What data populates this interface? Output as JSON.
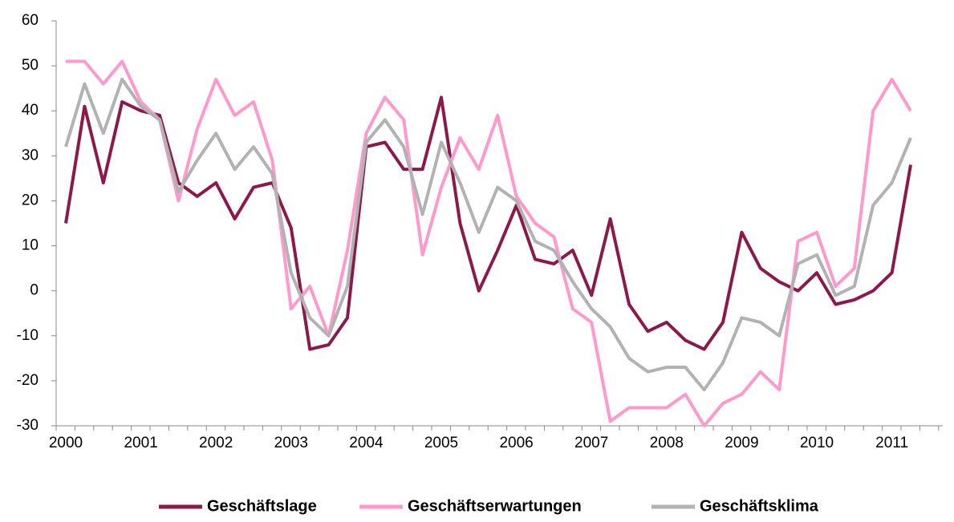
{
  "chart_data": {
    "type": "line",
    "categories": [
      "2000",
      null,
      null,
      null,
      "2001",
      null,
      null,
      null,
      "2002",
      null,
      null,
      null,
      "2003",
      null,
      null,
      null,
      "2004",
      null,
      null,
      null,
      "2005",
      null,
      null,
      null,
      "2006",
      null,
      null,
      null,
      "2007",
      null,
      null,
      null,
      "2008",
      null,
      null,
      null,
      "2009",
      null,
      null,
      null,
      "2010",
      null,
      null,
      null,
      "2011",
      null
    ],
    "series": [
      {
        "name": "Geschäftslage",
        "color": "#8b1a4a",
        "values": [
          15,
          41,
          24,
          42,
          40,
          39,
          24,
          21,
          24,
          16,
          23,
          24,
          14,
          -13,
          -12,
          -6,
          32,
          33,
          27,
          27,
          43,
          15,
          0,
          9,
          19,
          7,
          6,
          9,
          -1,
          16,
          -3,
          -9,
          -7,
          -11,
          -13,
          -7,
          13,
          5,
          2,
          0,
          4,
          -3,
          -2,
          0,
          4,
          28
        ]
      },
      {
        "name": "Geschäftserwartungen",
        "color": "#ff99cc",
        "values": [
          51,
          51,
          46,
          51,
          42,
          38,
          20,
          36,
          47,
          39,
          42,
          29,
          -4,
          1,
          -10,
          9,
          35,
          43,
          38,
          8,
          23,
          34,
          27,
          39,
          21,
          15,
          12,
          -4,
          -7,
          -29,
          -26,
          -26,
          -26,
          -23,
          -30,
          -25,
          -23,
          -18,
          -22,
          11,
          13,
          1,
          5,
          40,
          47,
          40
        ]
      },
      {
        "name": "Geschäftsklima",
        "color": "#b2b2b2",
        "values": [
          32,
          46,
          35,
          47,
          41,
          38,
          22,
          29,
          35,
          27,
          32,
          26,
          4,
          -6,
          -10,
          1,
          33,
          38,
          32,
          17,
          33,
          24,
          13,
          23,
          20,
          11,
          9,
          2,
          -4,
          -8,
          -15,
          -18,
          -17,
          -17,
          -22,
          -16,
          -6,
          -7,
          -10,
          6,
          8,
          -1,
          1,
          19,
          24,
          34
        ]
      }
    ],
    "ylim": [
      -30,
      60
    ],
    "yticks": [
      -30,
      -20,
      -10,
      0,
      10,
      20,
      30,
      40,
      50,
      60
    ],
    "legend": "bottom"
  }
}
